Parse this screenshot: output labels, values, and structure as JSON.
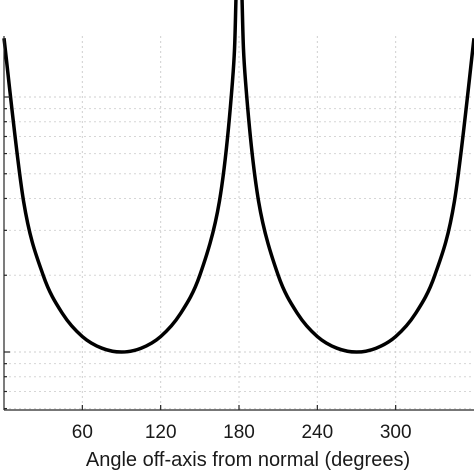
{
  "chart_data": {
    "type": "line",
    "title": "",
    "xlabel": "Angle off-axis from normal (degrees)",
    "ylabel": "",
    "xlim": [
      0,
      360
    ],
    "x_ticks": [
      60,
      120,
      180,
      240,
      300
    ],
    "x_tick_labels": [
      "60",
      "120",
      "180",
      "240",
      "300"
    ],
    "y_scale": "log",
    "grid": true,
    "legend": "none",
    "series": [
      {
        "x": [
          0,
          15,
          30,
          45,
          60,
          75,
          90,
          105,
          120,
          135,
          150,
          165,
          175,
          178,
          182,
          185,
          195,
          210,
          225,
          240,
          255,
          270,
          285,
          300,
          315,
          330,
          345,
          360
        ],
        "y": [
          17.0,
          3.9,
          2.0,
          1.41,
          1.15,
          1.035,
          1.0,
          1.035,
          1.15,
          1.41,
          2.0,
          3.9,
          11.5,
          28.0,
          28.0,
          11.5,
          3.9,
          2.0,
          1.41,
          1.15,
          1.035,
          1.0,
          1.035,
          1.15,
          1.41,
          2.0,
          3.9,
          17.0
        ]
      }
    ],
    "colors": {
      "line": "#000000",
      "grid": "#cfcfcf",
      "frame": "#262626"
    }
  }
}
